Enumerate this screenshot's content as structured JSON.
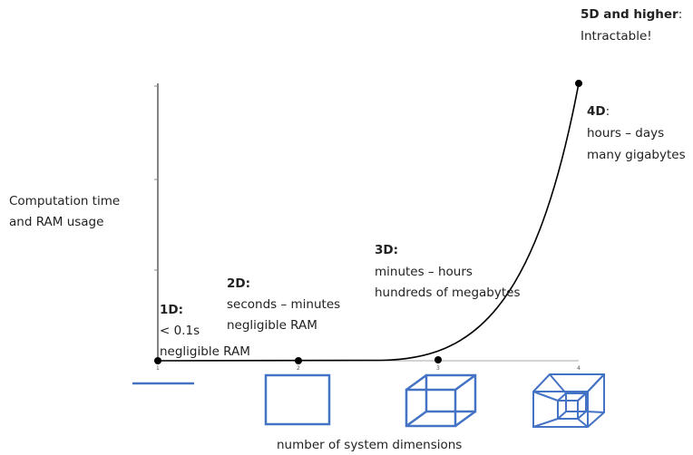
{
  "y_axis_label": [
    "Computation time",
    "and RAM usage"
  ],
  "x_axis_label": "number of system dimensions",
  "x_ticks": [
    "1",
    "2",
    "3",
    "4"
  ],
  "annotations": [
    {
      "heading": "1D:",
      "lines": [
        "< 0.1s",
        "negligible RAM"
      ]
    },
    {
      "heading": "2D:",
      "lines": [
        "seconds – minutes",
        "negligible RAM"
      ]
    },
    {
      "heading": "3D:",
      "lines": [
        "minutes – hours",
        "hundreds of megabytes"
      ]
    },
    {
      "heading": "4D",
      "heading_suffix": ":",
      "lines": [
        "hours – days",
        "many gigabytes"
      ]
    },
    {
      "heading": "5D and higher",
      "heading_suffix": ":",
      "lines": [
        "Intractable!"
      ]
    }
  ]
}
